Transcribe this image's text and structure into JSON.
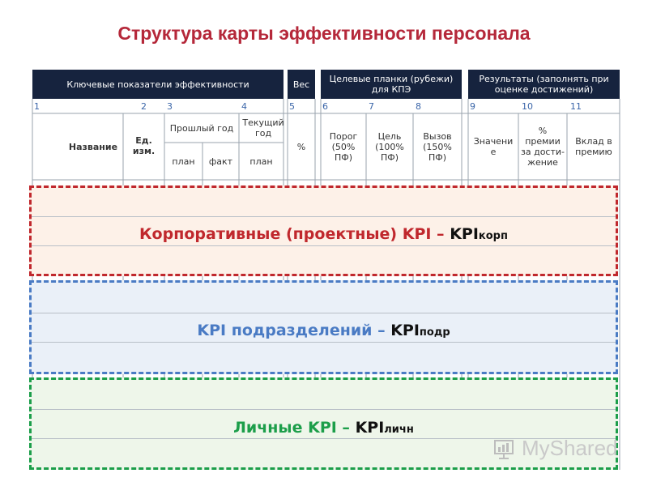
{
  "title": "Структура карты эффективности персонала",
  "headers": {
    "kpi": "Ключевые показатели эффективности",
    "weight": "Вес",
    "targets": "Целевые планки (рубежи) для КПЭ",
    "results": "Результаты (заполнять при оценке достижений)"
  },
  "column_numbers": [
    "1",
    "2",
    "3",
    "4",
    "5",
    "6",
    "7",
    "8",
    "9",
    "10",
    "11"
  ],
  "subheaders": {
    "name": "Название",
    "unit": "Ед. изм.",
    "prev_year": "Прошлый год",
    "current_year": "Текущий год",
    "plan": "план",
    "fact": "факт",
    "plan2": "план",
    "percent": "%",
    "threshold": "Порог (50% ПФ)",
    "target": "Цель (100% ПФ)",
    "challenge": "Вызов (150% ПФ)",
    "value": "Значени е",
    "bonus_percent": "% премии за дости- жение",
    "bonus_contribution": "Вклад в премию"
  },
  "bands": [
    {
      "text": "Корпоративные (проектные) KPI – ",
      "kpi": "KPI",
      "suffix": "корп",
      "color": "#c0282d",
      "fill": "#fdf1e8"
    },
    {
      "text": "KPI  подразделений  – ",
      "kpi": "KPI",
      "suffix": "подр",
      "color": "#4a7bc4",
      "fill": "#eaf0f8"
    },
    {
      "text": "Личные  KPI – ",
      "kpi": "KPI",
      "suffix": "личн",
      "color": "#1c9e4a",
      "fill": "#eef6ea"
    }
  ],
  "watermark": "MyShared"
}
